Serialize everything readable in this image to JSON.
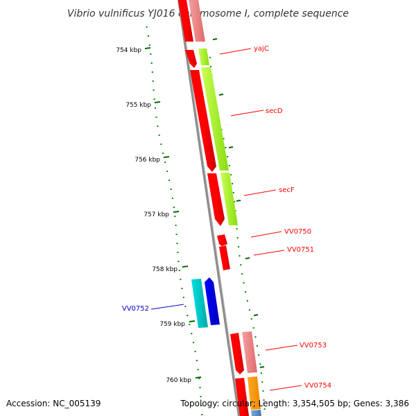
{
  "title": "Vibrio vulnificus YJ016 chromosome I, complete sequence",
  "footer": {
    "accession": "Accession: NC_005139",
    "summary": "Topology: circular; Length: 3,354,505 bp; Genes: 3,386"
  },
  "kbp_labels": [
    "754 kbp",
    "755 kbp",
    "756 kbp",
    "757 kbp",
    "758 kbp",
    "759 kbp",
    "760 kbp"
  ],
  "gene_labels": [
    {
      "name": "yajC",
      "color": "#ff0000"
    },
    {
      "name": "secD",
      "color": "#ff0000"
    },
    {
      "name": "secF",
      "color": "#ff0000"
    },
    {
      "name": "VV0750",
      "color": "#ff0000"
    },
    {
      "name": "VV0751",
      "color": "#ff0000"
    },
    {
      "name": "VV0752",
      "color": "#0000cc"
    },
    {
      "name": "VV0753",
      "color": "#ff0000"
    },
    {
      "name": "VV0754",
      "color": "#ff0000"
    }
  ],
  "colors": {
    "backbone": "#8c8c8c",
    "cds_forward": "#ff0000",
    "cds_reverse": "#0000ff",
    "cds_reverse_light": "#00cccc",
    "pink": "#f08080",
    "lime": "#aaff22",
    "orange": "#ff9900",
    "gc_dots": "#008800"
  }
}
